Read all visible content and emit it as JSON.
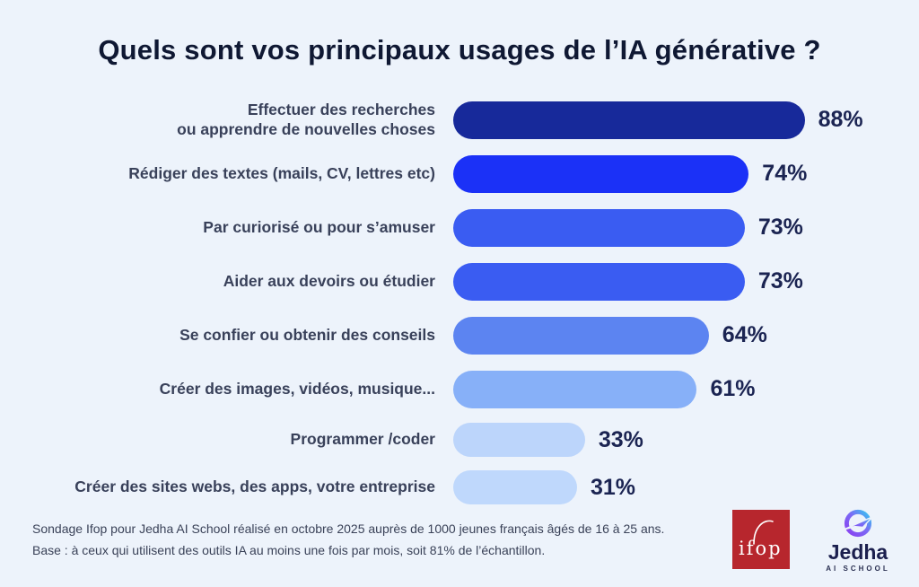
{
  "chart_data": {
    "type": "bar",
    "orientation": "horizontal",
    "title": "Quels sont vos principaux usages de l’IA générative ?",
    "xlim": [
      0,
      100
    ],
    "unit": "%",
    "grid": false,
    "legend": "none",
    "rows": [
      {
        "label": "Effectuer des recherches\nou apprendre de nouvelles choses",
        "value": 88,
        "display": "88%",
        "color": "#17299a"
      },
      {
        "label": "Rédiger des textes (mails, CV, lettres etc)",
        "value": 74,
        "display": "74%",
        "color": "#1b31f7"
      },
      {
        "label": "Par curiorisé ou pour s’amuser",
        "value": 73,
        "display": "73%",
        "color": "#3a5cf2"
      },
      {
        "label": "Aider aux devoirs ou étudier",
        "value": 73,
        "display": "73%",
        "color": "#3a5cf2"
      },
      {
        "label": "Se confier ou obtenir des conseils",
        "value": 64,
        "display": "64%",
        "color": "#5c84f1"
      },
      {
        "label": "Créer des images, vidéos, musique...",
        "value": 61,
        "display": "61%",
        "color": "#87b0f8"
      },
      {
        "label": "Programmer /coder",
        "value": 33,
        "display": "33%",
        "color": "#bcd5fb"
      },
      {
        "label": "Créer des sites webs, des apps, votre entreprise",
        "value": 31,
        "display": "31%",
        "color": "#bfd8fc"
      }
    ]
  },
  "footer": {
    "line1": "Sondage Ifop pour Jedha AI School réalisé en octobre 2025 auprès de 1000 jeunes français âgés de 16 à 25 ans.",
    "line2": "Base : à ceux qui utilisent des outils IA au moins une fois par mois, soit 81% de l’échantillon."
  },
  "logos": {
    "ifop_text": "ifop",
    "jedha_name": "Jedha",
    "jedha_sub": "AI SCHOOL"
  },
  "colors": {
    "background": "#edf3fb",
    "title_text": "#0f1833",
    "label_text": "#39415a",
    "value_text": "#1b2452",
    "ifop_red": "#b7262d",
    "jedha_gradient_start": "#8b3ff0",
    "jedha_gradient_end": "#35c8f0"
  }
}
